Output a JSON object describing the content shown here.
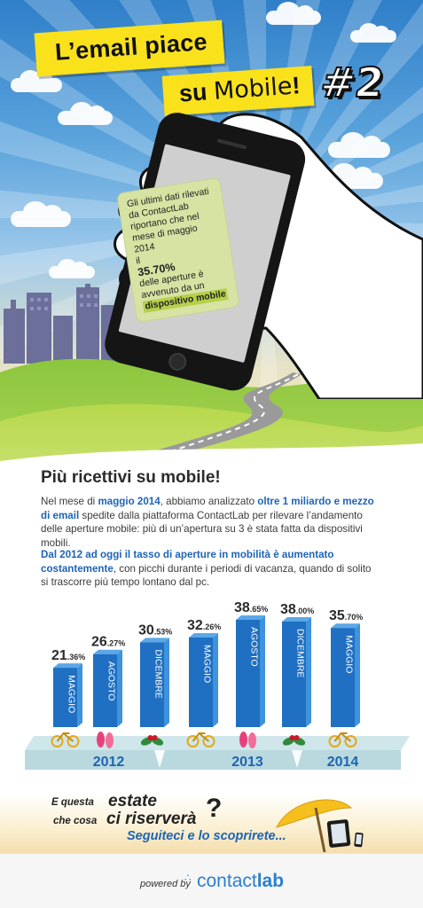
{
  "header": {
    "title_line1": "L’email piace",
    "title_line2_prefix": "su ",
    "title_line2_mobile": "Mobile",
    "title_line2_suffix": "!",
    "hashtag": "#2"
  },
  "phone_message": {
    "line_1": "Gli ultimi dati rilevati",
    "line_2": "da ContactLab",
    "line_3": "riportano che nel",
    "line_4": "mese di maggio 2014",
    "line_5": "il",
    "stat": "35.70%",
    "line_6": "delle aperture è",
    "line_7": "avvenuto da un",
    "highlight": "dispositivo mobile"
  },
  "section": {
    "headline": "Più ricettivi su mobile!",
    "p1_a": "Nel mese di ",
    "p1_b": "maggio 2014",
    "p1_c": ", abbiamo analizzato ",
    "p1_d": "oltre 1 miliardo e mezzo di email",
    "p1_e": " spedite dalla piattaforma ContactLab per rilevare l’andamento delle aperture mobile: più di un’apertura su 3 è stata fatta da dispositivi mobili.",
    "p2_a": "Dal 2012 ad oggi il tasso di aperture in mobilità è aumentato costantemente",
    "p2_b": ", con picchi durante i periodi di vacanza, quando di solito si trascorre più tempo lontano dal pc."
  },
  "chart_data": {
    "type": "bar",
    "categories": [
      "MAGGIO",
      "AGOSTO",
      "DICEMBRE",
      "MAGGIO",
      "AGOSTO",
      "DICEMBRE",
      "MAGGIO"
    ],
    "values": [
      21.36,
      26.27,
      30.53,
      32.26,
      38.65,
      38.0,
      35.7
    ],
    "labels_int": [
      "21",
      "26",
      "30",
      "32",
      "38",
      "38",
      "35"
    ],
    "labels_dec": [
      ".36%",
      ".27%",
      ".53%",
      ".26%",
      ".65%",
      ".00%",
      ".70%"
    ],
    "icons": [
      "bicycle-icon",
      "flip-flops-icon",
      "holly-icon",
      "bicycle-icon",
      "flip-flops-icon",
      "holly-icon",
      "bicycle-icon"
    ],
    "years": [
      "2012",
      "2013",
      "2014"
    ],
    "year_groups": [
      [
        0,
        2
      ],
      [
        3,
        5
      ],
      [
        6,
        6
      ]
    ],
    "colors": {
      "bar": "#1f6fc2",
      "bar_side": "#3f93dd",
      "year_text": "#1d64b6",
      "platform": "#cfe6ea"
    }
  },
  "footer": {
    "q_line1_small": "E questa",
    "q_line1_big": "estate",
    "q_line2_small": "che cosa",
    "q_line2_big": "ci riserverà",
    "q_mark": "?",
    "follow": "Seguiteci e lo scoprirete...",
    "powered_by": "powered by",
    "brand_a": "contact",
    "brand_b": "lab"
  }
}
